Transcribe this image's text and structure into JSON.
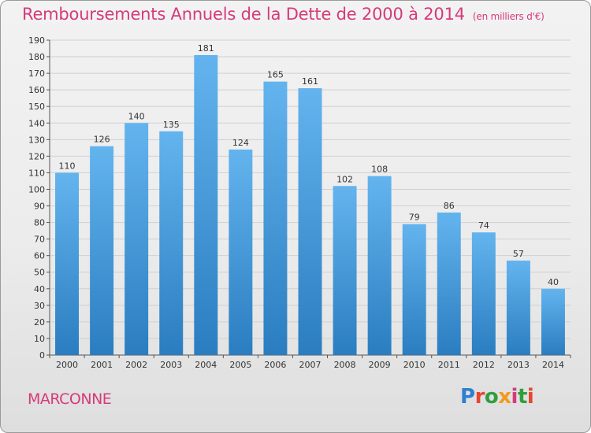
{
  "header": {
    "title": "Remboursements Annuels de la Dette de 2000 à 2014",
    "unit": "(en milliers d'€)"
  },
  "footer": {
    "city": "MARCONNE",
    "logo_text": "Proxiti"
  },
  "colors": {
    "title": "#d63a7a",
    "bar_top": "#63b4ee",
    "bar_bottom": "#2a7dc0",
    "grid": "#d0d0d0"
  },
  "chart_data": {
    "type": "bar",
    "title": "Remboursements Annuels de la Dette de 2000 à 2014",
    "subtitle": "(en milliers d'€)",
    "xlabel": "",
    "ylabel": "",
    "categories": [
      "2000",
      "2001",
      "2002",
      "2003",
      "2004",
      "2005",
      "2006",
      "2007",
      "2008",
      "2009",
      "2010",
      "2011",
      "2012",
      "2013",
      "2014"
    ],
    "values": [
      110,
      126,
      140,
      135,
      181,
      124,
      165,
      161,
      102,
      108,
      79,
      86,
      74,
      57,
      40
    ],
    "ylim": [
      0,
      190
    ],
    "ytick_step": 10,
    "grid": true,
    "legend": "none"
  }
}
